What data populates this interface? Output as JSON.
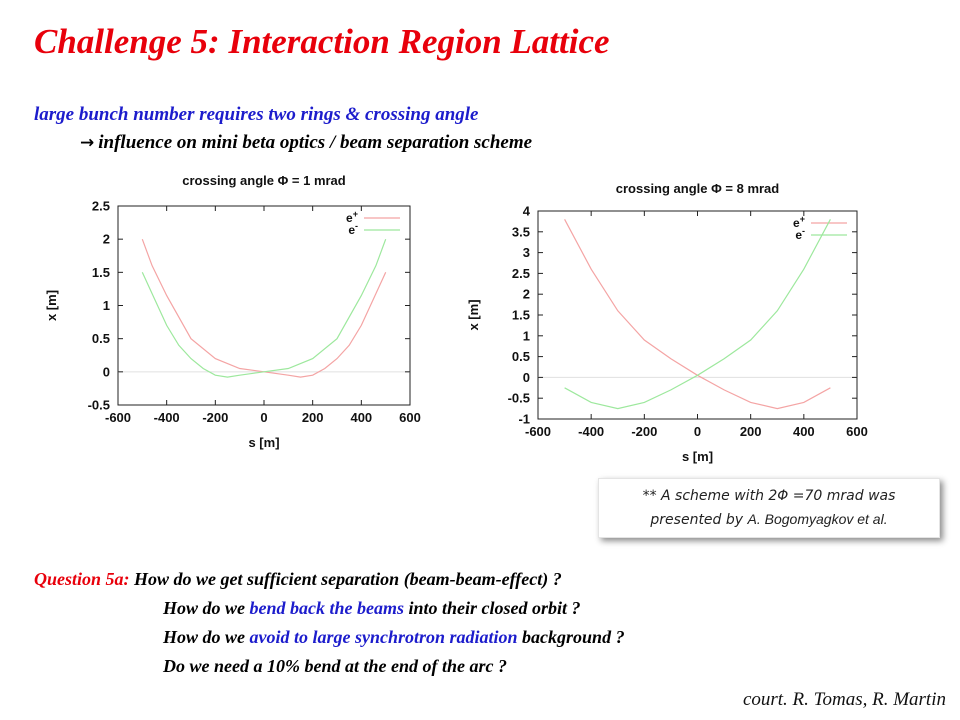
{
  "slide": {
    "title": "Challenge 5: Interaction Region Lattice",
    "subtitle_line1": "large bunch number requires two rings & crossing angle",
    "subtitle_arrow": "→",
    "subtitle_line2": "influence on mini beta optics / beam separation scheme",
    "note_line1": "** A scheme with 2Φ =70 mrad was",
    "note_line2_prefix": "presented by ",
    "note_line2_name": "A. Bogomyagkov et al.",
    "question_label": "Question 5a:",
    "q1": "How do we get sufficient separation (beam-beam-effect) ?",
    "q2_a": "How do we ",
    "q2_b": "bend back the beams",
    "q2_c": " into their closed orbit ?",
    "q3_a": "How do we ",
    "q3_b": "avoid to large synchrotron radiation",
    "q3_c": " background ?",
    "q4": "Do we need a 10% bend at the end of the arc ?",
    "credit": "court. R. Tomas, R. Martin"
  },
  "colors": {
    "title": "#e8000b",
    "highlight": "#1c1ccc",
    "e_plus": "#f4a4a4",
    "e_minus": "#9de89d"
  },
  "chart_data": [
    {
      "type": "line",
      "title": "crossing angle Φ = 1 mrad",
      "xlabel": "s [m]",
      "ylabel": "x [m]",
      "xlim": [
        -600,
        600
      ],
      "ylim": [
        -0.5,
        2.5
      ],
      "xticks": [
        -600,
        -400,
        -200,
        0,
        200,
        400,
        600
      ],
      "xtick_labels": [
        "-600",
        "-400",
        "-200",
        "0",
        "200",
        "400",
        "600"
      ],
      "yticks": [
        -0.5,
        0,
        0.5,
        1,
        1.5,
        2,
        2.5
      ],
      "ytick_labels": [
        "-0.5",
        "0",
        "0.5",
        "1",
        "1.5",
        "2",
        "2.5"
      ],
      "zero_line": true,
      "legend_position": "top-right",
      "series": [
        {
          "name": "e+",
          "legend_label": "e",
          "legend_sup": "+",
          "color": "#f4a4a4",
          "x": [
            -500,
            -460,
            -400,
            -300,
            -200,
            -100,
            0,
            100,
            150,
            200,
            250,
            300,
            350,
            400,
            450,
            500
          ],
          "y": [
            2.0,
            1.6,
            1.15,
            0.5,
            0.2,
            0.05,
            0.0,
            -0.05,
            -0.08,
            -0.05,
            0.05,
            0.2,
            0.4,
            0.7,
            1.1,
            1.5
          ]
        },
        {
          "name": "e-",
          "legend_label": "e",
          "legend_sup": "-",
          "color": "#9de89d",
          "x": [
            -500,
            -450,
            -400,
            -350,
            -300,
            -250,
            -200,
            -150,
            -100,
            0,
            100,
            200,
            300,
            400,
            460,
            500
          ],
          "y": [
            1.5,
            1.1,
            0.7,
            0.4,
            0.2,
            0.05,
            -0.05,
            -0.08,
            -0.05,
            0.0,
            0.05,
            0.2,
            0.5,
            1.15,
            1.6,
            2.0
          ]
        }
      ]
    },
    {
      "type": "line",
      "title": "crossing angle Φ = 8 mrad",
      "xlabel": "s [m]",
      "ylabel": "x [m]",
      "xlim": [
        -600,
        600
      ],
      "ylim": [
        -1,
        4
      ],
      "xticks": [
        -600,
        -400,
        -200,
        0,
        200,
        400,
        600
      ],
      "xtick_labels": [
        "-600",
        "-400",
        "-200",
        "0",
        "200",
        "400",
        "600"
      ],
      "yticks": [
        -1,
        -0.5,
        0,
        0.5,
        1,
        1.5,
        2,
        2.5,
        3,
        3.5,
        4
      ],
      "ytick_labels": [
        "-1",
        "-0.5",
        "0",
        "0.5",
        "1",
        "1.5",
        "2",
        "2.5",
        "3",
        "3.5",
        "4"
      ],
      "zero_line": true,
      "legend_position": "top-right",
      "series": [
        {
          "name": "e+",
          "legend_label": "e",
          "legend_sup": "+",
          "color": "#f4a4a4",
          "x": [
            -500,
            -400,
            -300,
            -200,
            -100,
            0,
            100,
            200,
            300,
            400,
            500
          ],
          "y": [
            3.8,
            2.6,
            1.6,
            0.9,
            0.45,
            0.05,
            -0.3,
            -0.6,
            -0.75,
            -0.6,
            -0.25
          ]
        },
        {
          "name": "e-",
          "legend_label": "e",
          "legend_sup": "-",
          "color": "#9de89d",
          "x": [
            -500,
            -400,
            -300,
            -200,
            -100,
            0,
            100,
            200,
            300,
            400,
            500
          ],
          "y": [
            -0.25,
            -0.6,
            -0.75,
            -0.6,
            -0.3,
            0.05,
            0.45,
            0.9,
            1.6,
            2.6,
            3.8
          ]
        }
      ]
    }
  ]
}
